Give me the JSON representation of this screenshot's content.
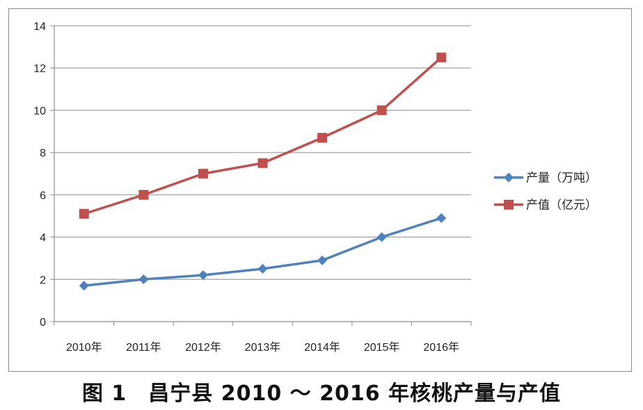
{
  "caption": "图 1　昌宁县 2010 ～ 2016 年核桃产量与产值",
  "chart_data": {
    "type": "line",
    "categories": [
      "2010年",
      "2011年",
      "2012年",
      "2013年",
      "2014年",
      "2015年",
      "2016年"
    ],
    "ylim": [
      0,
      14
    ],
    "yticks": [
      0,
      2,
      4,
      6,
      8,
      10,
      12,
      14
    ],
    "grid": true,
    "legend_position": "right",
    "series": [
      {
        "name": "产量（万吨）",
        "marker": "diamond",
        "color": "#4F81BD",
        "values": [
          1.7,
          2.0,
          2.2,
          2.5,
          2.9,
          4.0,
          4.9
        ]
      },
      {
        "name": "产值（亿元）",
        "marker": "square",
        "color": "#C0504D",
        "values": [
          5.1,
          6.0,
          7.0,
          7.5,
          8.7,
          10.0,
          12.5
        ]
      }
    ]
  }
}
